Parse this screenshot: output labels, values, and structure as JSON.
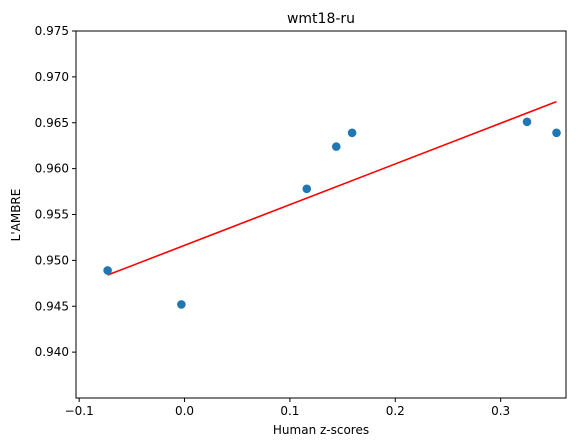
{
  "chart_data": {
    "type": "scatter",
    "title": "wmt18-ru",
    "xlabel": "Human z-scores",
    "ylabel": "L'AMBRE",
    "xlim": [
      -0.103,
      0.362
    ],
    "ylim": [
      0.935,
      0.975
    ],
    "xticks": [
      -0.1,
      0.0,
      0.1,
      0.2,
      0.3
    ],
    "xtick_labels": [
      "−0.1",
      "0.0",
      "0.1",
      "0.2",
      "0.3"
    ],
    "yticks": [
      0.94,
      0.945,
      0.95,
      0.955,
      0.96,
      0.965,
      0.97,
      0.975
    ],
    "ytick_labels": [
      "0.940",
      "0.945",
      "0.950",
      "0.955",
      "0.960",
      "0.965",
      "0.970",
      "0.975"
    ],
    "grid": false,
    "points": [
      {
        "x": -0.073,
        "y": 0.9489
      },
      {
        "x": -0.003,
        "y": 0.9452
      },
      {
        "x": 0.116,
        "y": 0.9578
      },
      {
        "x": 0.144,
        "y": 0.9624
      },
      {
        "x": 0.159,
        "y": 0.9639
      },
      {
        "x": 0.325,
        "y": 0.9651
      },
      {
        "x": 0.353,
        "y": 0.9639
      }
    ],
    "fit_line": {
      "x": [
        -0.073,
        0.353
      ],
      "y": [
        0.9484,
        0.9673
      ]
    },
    "colors": {
      "points": "#1f77b4",
      "fit_line": "#ff0000",
      "axes": "#000000"
    }
  }
}
